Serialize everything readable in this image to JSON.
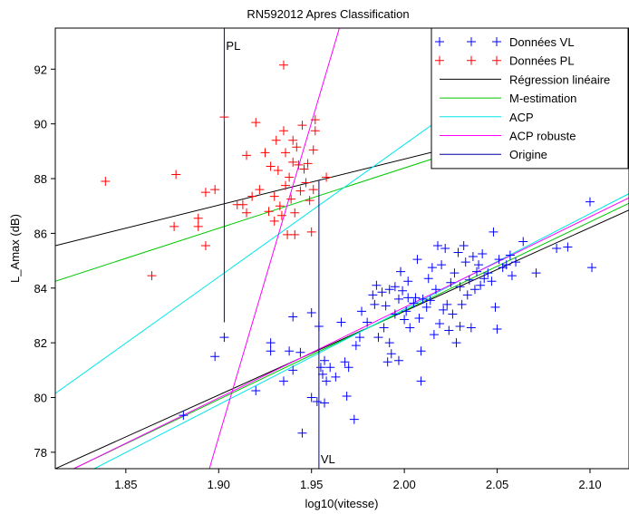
{
  "chart_data": {
    "type": "scatter",
    "title": "RN592012 Apres Classification",
    "xlabel": "log10(vitesse)",
    "ylabel": "L_Amax (dB)",
    "xlim": [
      1.812,
      2.121
    ],
    "ylim": [
      77.4,
      93.5
    ],
    "xticks": [
      1.85,
      1.9,
      1.95,
      2.0,
      2.05,
      2.1
    ],
    "xtick_labels": [
      "1.85",
      "1.90",
      "1.95",
      "2.00",
      "2.05",
      "2.10"
    ],
    "yticks": [
      78,
      80,
      82,
      84,
      86,
      88,
      90,
      92
    ],
    "ytick_labels": [
      "78",
      "80",
      "82",
      "84",
      "86",
      "88",
      "90",
      "92"
    ],
    "grid": false,
    "legend_position": "top-right",
    "series": [
      {
        "name": "Données VL",
        "kind": "scatter",
        "marker": "plus",
        "color": "#0000ff",
        "points": [
          [
            1.881,
            79.35
          ],
          [
            1.898,
            81.5
          ],
          [
            1.903,
            82.2
          ],
          [
            1.92,
            80.25
          ],
          [
            1.928,
            82.0
          ],
          [
            1.928,
            81.7
          ],
          [
            1.935,
            80.6
          ],
          [
            1.938,
            81.7
          ],
          [
            1.94,
            82.95
          ],
          [
            1.94,
            81.0
          ],
          [
            1.944,
            81.65
          ],
          [
            1.945,
            78.7
          ],
          [
            1.95,
            83.1
          ],
          [
            1.95,
            80.0
          ],
          [
            1.953,
            79.85
          ],
          [
            1.954,
            82.6
          ],
          [
            1.955,
            81.1
          ],
          [
            1.956,
            80.85
          ],
          [
            1.957,
            79.8
          ],
          [
            1.957,
            81.35
          ],
          [
            1.958,
            80.6
          ],
          [
            1.96,
            81.1
          ],
          [
            1.963,
            80.75
          ],
          [
            1.966,
            82.75
          ],
          [
            1.968,
            81.3
          ],
          [
            1.969,
            80.05
          ],
          [
            1.97,
            81.1
          ],
          [
            1.973,
            79.2
          ],
          [
            1.974,
            81.9
          ],
          [
            1.976,
            82.2
          ],
          [
            1.977,
            83.15
          ],
          [
            1.98,
            82.75
          ],
          [
            1.983,
            83.75
          ],
          [
            1.984,
            83.4
          ],
          [
            1.985,
            84.1
          ],
          [
            1.986,
            82.2
          ],
          [
            1.988,
            83.85
          ],
          [
            1.989,
            82.55
          ],
          [
            1.99,
            83.35
          ],
          [
            1.991,
            81.3
          ],
          [
            1.992,
            83.95
          ],
          [
            1.992,
            82.0
          ],
          [
            1.993,
            81.6
          ],
          [
            1.995,
            83.05
          ],
          [
            1.995,
            84.05
          ],
          [
            1.997,
            83.6
          ],
          [
            1.997,
            81.35
          ],
          [
            1.998,
            84.6
          ],
          [
            1.999,
            83.9
          ],
          [
            2.0,
            82.85
          ],
          [
            2.001,
            83.15
          ],
          [
            2.002,
            83.65
          ],
          [
            2.002,
            84.25
          ],
          [
            2.003,
            82.55
          ],
          [
            2.005,
            83.45
          ],
          [
            2.006,
            83.65
          ],
          [
            2.007,
            85.05
          ],
          [
            2.008,
            82.9
          ],
          [
            2.009,
            81.7
          ],
          [
            2.009,
            80.6
          ],
          [
            2.01,
            83.6
          ],
          [
            2.012,
            83.3
          ],
          [
            2.013,
            84.35
          ],
          [
            2.014,
            83.55
          ],
          [
            2.015,
            84.75
          ],
          [
            2.016,
            82.3
          ],
          [
            2.017,
            83.95
          ],
          [
            2.018,
            85.55
          ],
          [
            2.019,
            82.7
          ],
          [
            2.02,
            84.85
          ],
          [
            2.021,
            83.2
          ],
          [
            2.022,
            85.45
          ],
          [
            2.023,
            83.4
          ],
          [
            2.024,
            82.45
          ],
          [
            2.025,
            84.2
          ],
          [
            2.026,
            83.05
          ],
          [
            2.027,
            84.55
          ],
          [
            2.028,
            82.0
          ],
          [
            2.029,
            85.3
          ],
          [
            2.03,
            82.6
          ],
          [
            2.03,
            84.05
          ],
          [
            2.031,
            83.4
          ],
          [
            2.032,
            85.55
          ],
          [
            2.033,
            84.95
          ],
          [
            2.034,
            83.75
          ],
          [
            2.035,
            84.3
          ],
          [
            2.036,
            82.55
          ],
          [
            2.037,
            85.15
          ],
          [
            2.038,
            83.95
          ],
          [
            2.039,
            84.6
          ],
          [
            2.04,
            84.85
          ],
          [
            2.041,
            84.1
          ],
          [
            2.042,
            85.25
          ],
          [
            2.043,
            84.35
          ],
          [
            2.045,
            84.55
          ],
          [
            2.047,
            84.25
          ],
          [
            2.048,
            86.05
          ],
          [
            2.049,
            83.3
          ],
          [
            2.05,
            82.5
          ],
          [
            2.051,
            85.05
          ],
          [
            2.053,
            84.75
          ],
          [
            2.055,
            84.85
          ],
          [
            2.057,
            85.2
          ],
          [
            2.058,
            84.45
          ],
          [
            2.06,
            84.95
          ],
          [
            2.064,
            85.7
          ],
          [
            2.071,
            84.55
          ],
          [
            2.082,
            85.45
          ],
          [
            2.088,
            85.5
          ],
          [
            2.1,
            87.15
          ],
          [
            2.101,
            84.75
          ]
        ]
      },
      {
        "name": "Données PL",
        "kind": "scatter",
        "marker": "plus",
        "color": "#ff0000",
        "points": [
          [
            1.839,
            87.9
          ],
          [
            1.864,
            84.45
          ],
          [
            1.876,
            86.25
          ],
          [
            1.877,
            88.15
          ],
          [
            1.889,
            86.55
          ],
          [
            1.889,
            86.25
          ],
          [
            1.893,
            87.5
          ],
          [
            1.893,
            85.55
          ],
          [
            1.898,
            87.6
          ],
          [
            1.903,
            90.25
          ],
          [
            1.91,
            87.05
          ],
          [
            1.913,
            87.05
          ],
          [
            1.915,
            86.75
          ],
          [
            1.915,
            88.85
          ],
          [
            1.918,
            87.35
          ],
          [
            1.92,
            90.05
          ],
          [
            1.922,
            87.6
          ],
          [
            1.925,
            88.95
          ],
          [
            1.927,
            86.8
          ],
          [
            1.928,
            88.45
          ],
          [
            1.93,
            87.35
          ],
          [
            1.93,
            86.45
          ],
          [
            1.931,
            89.4
          ],
          [
            1.932,
            88.3
          ],
          [
            1.933,
            87.0
          ],
          [
            1.934,
            86.65
          ],
          [
            1.935,
            89.75
          ],
          [
            1.935,
            92.15
          ],
          [
            1.936,
            88.95
          ],
          [
            1.936,
            87.75
          ],
          [
            1.937,
            85.95
          ],
          [
            1.938,
            88.05
          ],
          [
            1.939,
            87.25
          ],
          [
            1.94,
            89.4
          ],
          [
            1.94,
            88.6
          ],
          [
            1.941,
            86.75
          ],
          [
            1.941,
            85.95
          ],
          [
            1.942,
            89.15
          ],
          [
            1.943,
            88.5
          ],
          [
            1.944,
            87.55
          ],
          [
            1.945,
            89.95
          ],
          [
            1.946,
            88.35
          ],
          [
            1.947,
            87.85
          ],
          [
            1.948,
            88.55
          ],
          [
            1.949,
            87.2
          ],
          [
            1.95,
            86.05
          ],
          [
            1.951,
            89.05
          ],
          [
            1.951,
            87.6
          ],
          [
            1.952,
            90.15
          ],
          [
            1.952,
            89.75
          ],
          [
            1.958,
            88.05
          ]
        ]
      },
      {
        "name": "Régression linéaire",
        "kind": "lines",
        "color": "#000000",
        "segments": [
          [
            [
              1.812,
              85.55
            ],
            [
              2.121,
              90.75
            ]
          ],
          [
            [
              1.812,
              77.4
            ],
            [
              2.121,
              86.85
            ]
          ]
        ]
      },
      {
        "name": "M-estimation",
        "kind": "lines",
        "color": "#00c800",
        "segments": [
          [
            [
              1.812,
              84.25
            ],
            [
              2.121,
              91.05
            ]
          ],
          [
            [
              1.822,
              77.4
            ],
            [
              2.121,
              87.1
            ]
          ]
        ]
      },
      {
        "name": "ACP",
        "kind": "lines",
        "color": "#00e6e6",
        "segments": [
          [
            [
              1.812,
              80.15
            ],
            [
              2.121,
              95.1
            ]
          ],
          [
            [
              1.833,
              77.4
            ],
            [
              2.121,
              87.45
            ]
          ]
        ]
      },
      {
        "name": "ACP robuste",
        "kind": "lines",
        "color": "#ff00ff",
        "segments": [
          [
            [
              1.895,
              77.4
            ],
            [
              1.965,
              93.5
            ]
          ],
          [
            [
              1.822,
              77.4
            ],
            [
              2.121,
              87.3
            ]
          ]
        ]
      },
      {
        "name": "Origine",
        "kind": "lines",
        "color": "#0000aa",
        "segments": [
          [
            [
              1.903,
              82.75
            ],
            [
              1.903,
              93.5
            ]
          ],
          [
            [
              1.954,
              87.95
            ],
            [
              1.954,
              77.4
            ]
          ]
        ]
      }
    ],
    "annotations": [
      {
        "text": "PL",
        "x": 1.903,
        "y": 92.7
      },
      {
        "text": "VL",
        "x": 1.954,
        "y": 77.6
      }
    ]
  }
}
